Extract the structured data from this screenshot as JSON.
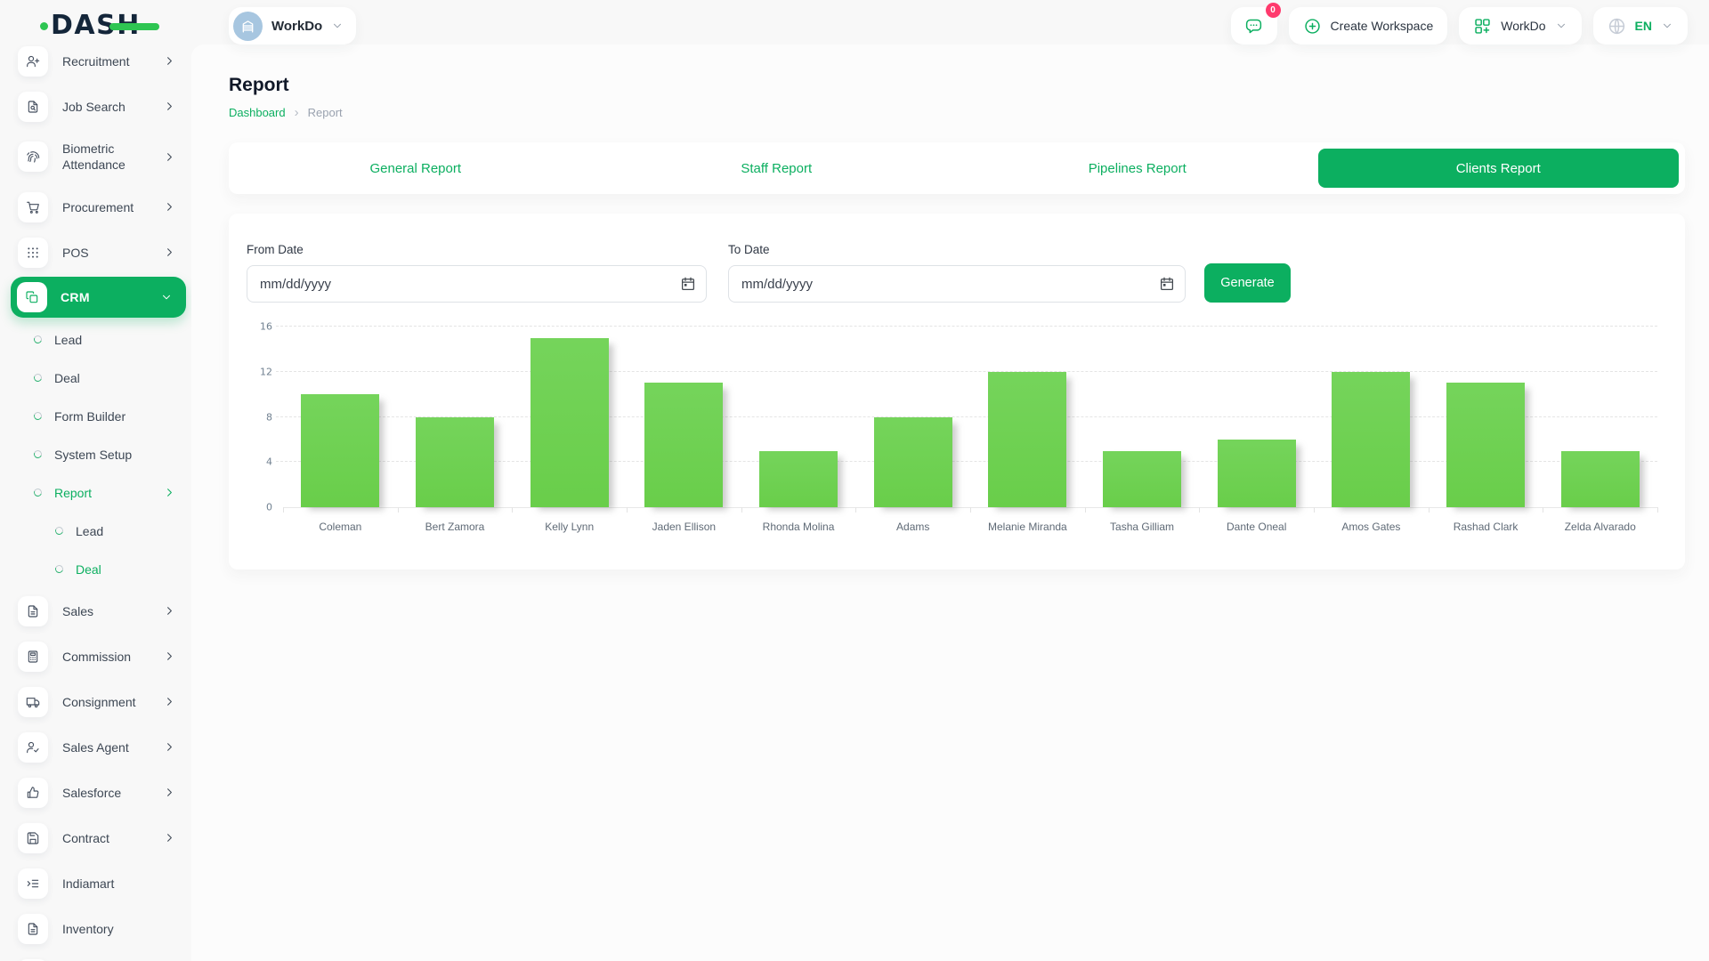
{
  "colors": {
    "primary": "#0caf60",
    "bar_green": "#6fd04f",
    "badge_red": "#ff3a6d",
    "logo_green": "#2ec552"
  },
  "header": {
    "logo_text": "DASH",
    "workspace_switcher": {
      "label": "WorkDo",
      "icon": "building"
    },
    "messages": {
      "count": "0",
      "icon": "chat"
    },
    "create_workspace": {
      "label": "Create Workspace",
      "icon": "plus-circle"
    },
    "account_menu": {
      "label": "WorkDo",
      "icon": "grid-plus"
    },
    "language_menu": {
      "label": "EN",
      "icon": "globe"
    }
  },
  "sidebar": {
    "items": [
      {
        "label": "Recruitment",
        "icon": "user-plus",
        "chevron": true
      },
      {
        "label": "Job Search",
        "icon": "file-search",
        "chevron": true
      },
      {
        "label": "Biometric Attendance",
        "icon": "fingerprint",
        "chevron": true
      },
      {
        "label": "Procurement",
        "icon": "shopping-cart",
        "chevron": true
      },
      {
        "label": "POS",
        "icon": "grid-dots",
        "chevron": true
      },
      {
        "label": "CRM",
        "icon": "copy",
        "active": true,
        "chevron": "down",
        "children": [
          {
            "label": "Lead"
          },
          {
            "label": "Deal"
          },
          {
            "label": "Form Builder"
          },
          {
            "label": "System Setup"
          },
          {
            "label": "Report",
            "active": true,
            "chevron": true,
            "children": [
              {
                "label": "Lead"
              },
              {
                "label": "Deal",
                "active": true
              }
            ]
          }
        ]
      },
      {
        "label": "Sales",
        "icon": "file",
        "chevron": true
      },
      {
        "label": "Commission",
        "icon": "calculator",
        "chevron": true
      },
      {
        "label": "Consignment",
        "icon": "truck",
        "chevron": true
      },
      {
        "label": "Sales Agent",
        "icon": "user-check",
        "chevron": true
      },
      {
        "label": "Salesforce",
        "icon": "thumbs-up",
        "chevron": true
      },
      {
        "label": "Contract",
        "icon": "save",
        "chevron": true
      },
      {
        "label": "Indiamart",
        "icon": "list-indent",
        "chevron": false
      },
      {
        "label": "Inventory",
        "icon": "file",
        "chevron": false
      },
      {
        "label": "",
        "icon": "file",
        "chevron": false,
        "partial": true
      }
    ]
  },
  "page": {
    "title": "Report",
    "breadcrumb": [
      "Dashboard",
      "Report"
    ],
    "separator": "›"
  },
  "tabs": [
    {
      "label": "General Report",
      "active": false
    },
    {
      "label": "Staff Report",
      "active": false
    },
    {
      "label": "Pipelines Report",
      "active": false
    },
    {
      "label": "Clients Report",
      "active": true
    }
  ],
  "filters": {
    "from_label": "From Date",
    "to_label": "To Date",
    "date_placeholder": "mm/dd/yyyy",
    "generate_label": "Generate"
  },
  "chart_data": {
    "type": "bar",
    "categories": [
      "Coleman",
      "Bert Zamora",
      "Kelly Lynn",
      "Jaden Ellison",
      "Rhonda Molina",
      "Adams",
      "Melanie Miranda",
      "Tasha Gilliam",
      "Dante Oneal",
      "Amos Gates",
      "Rashad Clark",
      "Zelda Alvarado"
    ],
    "values": [
      10,
      8,
      15,
      11,
      5,
      8,
      12,
      5,
      6,
      12,
      11,
      5
    ],
    "title": "",
    "xlabel": "",
    "ylabel": "",
    "ylim": [
      0,
      16
    ],
    "yticks": [
      0,
      4,
      8,
      12,
      16
    ],
    "grid": true,
    "legend": false,
    "bar_color": "#6fd04f"
  }
}
